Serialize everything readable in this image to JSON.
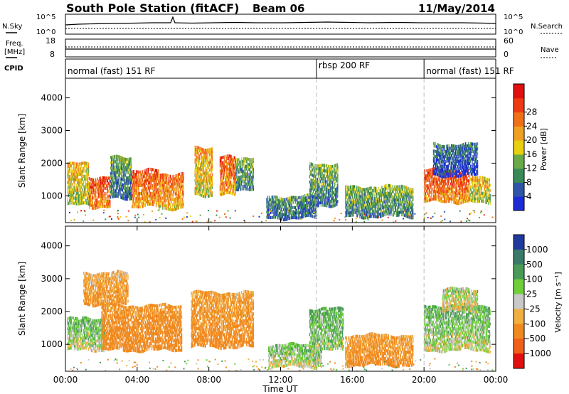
{
  "header": {
    "title": "South Pole Station (fitACF)",
    "beam": "Beam 06",
    "date": "11/May/2014"
  },
  "top_panels": {
    "nsky_label": "N.Sky",
    "nsearch_label": "N.Search",
    "nsky_ticks": [
      "10^5",
      "10^0"
    ],
    "nsearch_ticks": [
      "10^5",
      "10^0"
    ],
    "freq_label_line1": "Freq.",
    "freq_label_line2": "[MHz]",
    "freq_ticks": [
      "18",
      "8"
    ],
    "nave_label": "Nave",
    "nave_ticks": [
      "60",
      "0"
    ],
    "cpid_label": "CPID"
  },
  "cpid_segments": [
    {
      "label": "normal (fast) 151 RF",
      "start_hour": 0,
      "end_hour": 14
    },
    {
      "label": "rbsp 200 RF",
      "start_hour": 14,
      "end_hour": 20
    },
    {
      "label": "normal (fast) 151 RF",
      "start_hour": 20,
      "end_hour": 24
    }
  ],
  "axes": {
    "x_label": "Time UT",
    "x_ticks": [
      "00:00",
      "04:00",
      "08:00",
      "12:00",
      "16:00",
      "20:00",
      "00:00"
    ],
    "x_range_hours": [
      0,
      24
    ],
    "y_label": "Slant Range [km]",
    "y_ticks": [
      "1000",
      "2000",
      "3000",
      "4000"
    ],
    "y_range_km": [
      180,
      4600
    ]
  },
  "colorbars": {
    "power": {
      "label": "Power [dB]",
      "ticks": [
        "4",
        "8",
        "12",
        "16",
        "20",
        "24",
        "28"
      ],
      "colors": [
        "#1c2bd6",
        "#2f55a8",
        "#3a8a58",
        "#6aaa48",
        "#e8d010",
        "#f0a020",
        "#f07018",
        "#ee3a12",
        "#e01010"
      ]
    },
    "velocity": {
      "label": "Velocity [m s⁻¹]",
      "ticks": [
        "1000",
        "500",
        "100",
        "25",
        "-25",
        "-100",
        "-500",
        "-1000"
      ],
      "colors": [
        "#1f3a9c",
        "#3b7a68",
        "#4a9a58",
        "#6fcf3a",
        "#c8c8c8",
        "#f0b040",
        "#f08a20",
        "#f06018",
        "#e01010"
      ]
    }
  },
  "chart_data": {
    "type": "heatmap",
    "title": "South Pole Station (fitACF)",
    "xlabel": "Time UT",
    "ylabel": "Slant Range [km]",
    "xlim": [
      0,
      24
    ],
    "ylim": [
      180,
      4600
    ],
    "panels": [
      {
        "name": "Power [dB]",
        "regions": [
          {
            "t0": 0.1,
            "t1": 1.3,
            "r0": 700,
            "r1": 2000,
            "value": 18
          },
          {
            "t0": 1.3,
            "t1": 2.5,
            "r0": 650,
            "r1": 1600,
            "value": 27
          },
          {
            "t0": 2.5,
            "t1": 3.7,
            "r0": 900,
            "r1": 2200,
            "value": 10
          },
          {
            "t0": 3.7,
            "t1": 5.2,
            "r0": 650,
            "r1": 1800,
            "value": 26
          },
          {
            "t0": 5.2,
            "t1": 6.6,
            "r0": 600,
            "r1": 1700,
            "value": 24
          },
          {
            "t0": 7.2,
            "t1": 8.2,
            "r0": 1000,
            "r1": 2500,
            "value": 20
          },
          {
            "t0": 8.6,
            "t1": 9.5,
            "r0": 1000,
            "r1": 2200,
            "value": 26
          },
          {
            "t0": 9.5,
            "t1": 10.5,
            "r0": 1200,
            "r1": 2200,
            "value": 12
          },
          {
            "t0": 11.2,
            "t1": 14.0,
            "r0": 300,
            "r1": 1000,
            "value": 9
          },
          {
            "t0": 13.6,
            "t1": 15.2,
            "r0": 700,
            "r1": 2000,
            "value": 11
          },
          {
            "t0": 15.6,
            "t1": 19.4,
            "r0": 350,
            "r1": 1300,
            "value": 12
          },
          {
            "t0": 20.0,
            "t1": 22.5,
            "r0": 800,
            "r1": 1800,
            "value": 27
          },
          {
            "t0": 20.5,
            "t1": 23.0,
            "r0": 1600,
            "r1": 2600,
            "value": 6
          },
          {
            "t0": 22.5,
            "t1": 23.7,
            "r0": 800,
            "r1": 1600,
            "value": 18
          }
        ]
      },
      {
        "name": "Velocity [m s⁻¹]",
        "regions": [
          {
            "t0": 0.1,
            "t1": 2.2,
            "r0": 800,
            "r1": 1800,
            "value": 60
          },
          {
            "t0": 1.0,
            "t1": 3.5,
            "r0": 2200,
            "r1": 3200,
            "value": -120
          },
          {
            "t0": 2.0,
            "t1": 6.5,
            "r0": 800,
            "r1": 2200,
            "value": -180
          },
          {
            "t0": 7.0,
            "t1": 10.5,
            "r0": 900,
            "r1": 2600,
            "value": -150
          },
          {
            "t0": 11.3,
            "t1": 14.3,
            "r0": 300,
            "r1": 1000,
            "value": 50
          },
          {
            "t0": 13.6,
            "t1": 15.5,
            "r0": 800,
            "r1": 2100,
            "value": 80
          },
          {
            "t0": 15.6,
            "t1": 19.4,
            "r0": 350,
            "r1": 1300,
            "value": -140
          },
          {
            "t0": 20.0,
            "t1": 23.7,
            "r0": 800,
            "r1": 2200,
            "value": 60
          },
          {
            "t0": 21.0,
            "t1": 23.0,
            "r0": 2000,
            "r1": 2700,
            "value": 0
          }
        ]
      }
    ],
    "time_range_hours": [
      0,
      24
    ]
  }
}
